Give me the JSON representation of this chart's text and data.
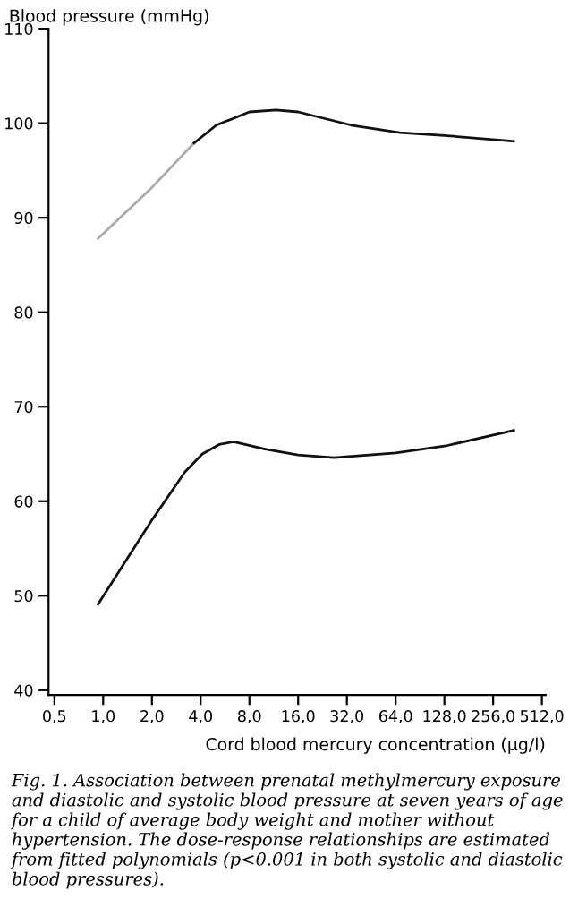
{
  "chart_data": {
    "type": "line",
    "ylabel": "Blood pressure (mmHg)",
    "xlabel": "Cord blood mercury concentration (µg/l)",
    "log": "x",
    "grid": false,
    "legend": false,
    "marker": "none",
    "line_style": "solid",
    "xlim": [
      0.46,
      540
    ],
    "ylim": [
      39.5,
      110
    ],
    "xticks": [
      {
        "value": 0.5,
        "label": "0,5"
      },
      {
        "value": 1,
        "label": "1,0"
      },
      {
        "value": 2,
        "label": "2,0"
      },
      {
        "value": 4,
        "label": "4,0"
      },
      {
        "value": 8,
        "label": "8,0"
      },
      {
        "value": 16,
        "label": "16,0"
      },
      {
        "value": 32,
        "label": "32,0"
      },
      {
        "value": 64,
        "label": "64,0"
      },
      {
        "value": 128,
        "label": "128,0"
      },
      {
        "value": 256,
        "label": "256,0"
      },
      {
        "value": 512,
        "label": "512,0"
      }
    ],
    "yticks": [
      40,
      50,
      60,
      70,
      80,
      90,
      100,
      110
    ],
    "series": [
      {
        "color": "#aaaaaa",
        "x": [
          0.93,
          2,
          3.64
        ],
        "values": [
          87.8,
          93.2,
          97.9
        ]
      },
      {
        "color": "#111111",
        "x": [
          3.64,
          5,
          8,
          11.7,
          16,
          34,
          68,
          128,
          343
        ],
        "values": [
          97.9,
          99.8,
          101.2,
          101.4,
          101.2,
          99.8,
          99.0,
          98.7,
          98.1
        ]
      },
      {
        "color": "#111111",
        "x": [
          0.93,
          2,
          3.2,
          4.1,
          5.2,
          6.4,
          10,
          16,
          26.6,
          64,
          134,
          343
        ],
        "values": [
          49.1,
          58.0,
          63.1,
          65.0,
          66.0,
          66.3,
          65.5,
          64.9,
          64.6,
          65.1,
          65.9,
          67.5
        ]
      }
    ],
    "annotations": [
      "Fig. 1. Association between prenatal methylmercury exposure and diastolic and systolic blood pressure at seven years of age for a child of average body weight and mother without hypertension. The dose-response relationships are estimated from fitted polynomials (p<0.001 in both systolic and diastolic blood pressures)."
    ]
  }
}
